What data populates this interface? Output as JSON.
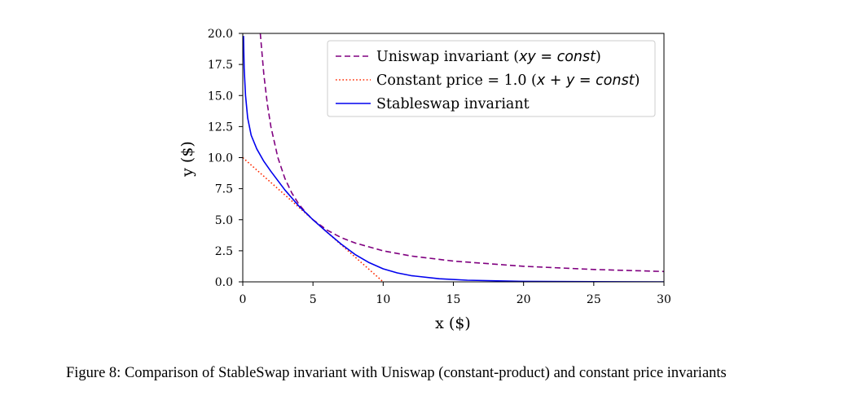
{
  "chart_data": {
    "type": "line",
    "xlabel": "x ($)",
    "ylabel": "y ($)",
    "xlim": [
      0,
      30
    ],
    "ylim": [
      0,
      20
    ],
    "x_ticks": [
      "0",
      "5",
      "10",
      "15",
      "20",
      "25",
      "30"
    ],
    "y_ticks": [
      "0.0",
      "2.5",
      "5.0",
      "7.5",
      "10.0",
      "12.5",
      "15.0",
      "17.5",
      "20.0"
    ],
    "grid": false,
    "legend_position": "top-right",
    "series": [
      {
        "name": "Uniswap invariant (xy = const)",
        "legend_prefix": "Uniswap invariant (",
        "legend_math": "xy",
        "legend_rel": " = ",
        "legend_const": "const",
        "legend_suffix": ")",
        "color": "#800080",
        "style": "dashed",
        "x": [
          1.25,
          1.5,
          1.75,
          2,
          2.5,
          3,
          3.5,
          4,
          4.5,
          5,
          6,
          7,
          8,
          10,
          12,
          15,
          20,
          25,
          30
        ],
        "y": [
          20,
          16.67,
          14.29,
          12.5,
          10,
          8.33,
          7.14,
          6.25,
          5.56,
          5,
          4.17,
          3.57,
          3.13,
          2.5,
          2.08,
          1.67,
          1.25,
          1,
          0.83
        ]
      },
      {
        "name": "Constant price = 1.0 (x + y = const)",
        "legend_prefix": "Constant price = 1.0 (",
        "legend_math_x": "x",
        "legend_plus": " + ",
        "legend_math_y": "y",
        "legend_rel": " = ",
        "legend_const": "const",
        "legend_suffix": ")",
        "color": "#ff2a00",
        "style": "dotted",
        "x": [
          0,
          10
        ],
        "y": [
          10,
          0
        ]
      },
      {
        "name": "Stableswap invariant",
        "color": "#0000ee",
        "style": "solid",
        "x": [
          0.05,
          0.1,
          0.2,
          0.35,
          0.6,
          1,
          1.5,
          2,
          3,
          4,
          5,
          6,
          7,
          8,
          9,
          10,
          11,
          12,
          14,
          16,
          20,
          25,
          30
        ],
        "y": [
          19.8,
          17.2,
          15,
          13.2,
          11.8,
          10.7,
          9.7,
          8.9,
          7.4,
          6.1,
          5,
          4,
          3.05,
          2.2,
          1.55,
          1.05,
          0.72,
          0.5,
          0.25,
          0.13,
          0.04,
          0.01,
          0.003
        ]
      }
    ]
  },
  "caption": "Figure 8: Comparison of StableSwap invariant with Uniswap (constant-product) and constant price invariants"
}
